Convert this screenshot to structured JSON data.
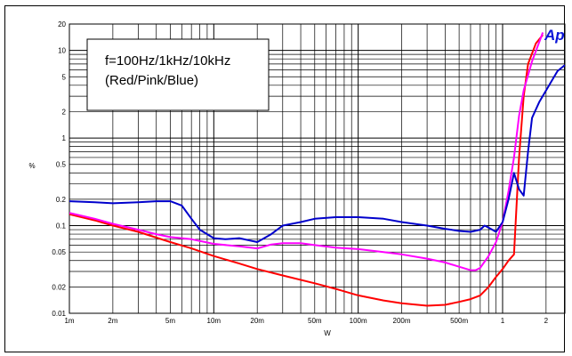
{
  "chart_data": {
    "type": "line",
    "xlabel": "W",
    "ylabel": "%",
    "x_scale": "log",
    "y_scale": "log",
    "xlim": [
      0.001,
      2.7
    ],
    "ylim": [
      0.01,
      20
    ],
    "grid": true,
    "x_ticks": [
      {
        "value": 0.001,
        "label": "1m"
      },
      {
        "value": 0.002,
        "label": "2m"
      },
      {
        "value": 0.005,
        "label": "5m"
      },
      {
        "value": 0.01,
        "label": "10m"
      },
      {
        "value": 0.02,
        "label": "20m"
      },
      {
        "value": 0.05,
        "label": "50m"
      },
      {
        "value": 0.1,
        "label": "100m"
      },
      {
        "value": 0.2,
        "label": "200m"
      },
      {
        "value": 0.5,
        "label": "500m"
      },
      {
        "value": 1,
        "label": "1"
      },
      {
        "value": 2,
        "label": "2"
      }
    ],
    "y_ticks": [
      {
        "value": 0.01,
        "label": "0.01"
      },
      {
        "value": 0.02,
        "label": "0.02"
      },
      {
        "value": 0.05,
        "label": "0.05"
      },
      {
        "value": 0.1,
        "label": "0.1"
      },
      {
        "value": 0.2,
        "label": "0.2"
      },
      {
        "value": 0.5,
        "label": "0.5"
      },
      {
        "value": 1,
        "label": "1"
      },
      {
        "value": 2,
        "label": "2"
      },
      {
        "value": 5,
        "label": "5"
      },
      {
        "value": 10,
        "label": "10"
      },
      {
        "value": 20,
        "label": "20"
      }
    ],
    "annotation": {
      "lines": [
        "f=100Hz/1kHz/10kHz",
        "(Red/Pink/Blue)"
      ]
    },
    "logo": "Ap",
    "series": [
      {
        "color": "#ff0000",
        "points": [
          [
            0.001,
            0.135
          ],
          [
            0.0015,
            0.115
          ],
          [
            0.002,
            0.1
          ],
          [
            0.003,
            0.085
          ],
          [
            0.005,
            0.065
          ],
          [
            0.007,
            0.055
          ],
          [
            0.01,
            0.045
          ],
          [
            0.015,
            0.037
          ],
          [
            0.02,
            0.032
          ],
          [
            0.03,
            0.027
          ],
          [
            0.05,
            0.022
          ],
          [
            0.07,
            0.019
          ],
          [
            0.1,
            0.016
          ],
          [
            0.15,
            0.014
          ],
          [
            0.2,
            0.013
          ],
          [
            0.3,
            0.0122
          ],
          [
            0.4,
            0.0125
          ],
          [
            0.5,
            0.0135
          ],
          [
            0.6,
            0.0145
          ],
          [
            0.7,
            0.016
          ],
          [
            0.8,
            0.02
          ],
          [
            0.9,
            0.026
          ],
          [
            1.0,
            0.032
          ],
          [
            1.1,
            0.04
          ],
          [
            1.2,
            0.047
          ],
          [
            1.3,
            0.6
          ],
          [
            1.4,
            3.0
          ],
          [
            1.5,
            7.0
          ],
          [
            1.7,
            12.0
          ],
          [
            1.9,
            15.0
          ]
        ]
      },
      {
        "color": "#ff00ff",
        "points": [
          [
            0.001,
            0.14
          ],
          [
            0.0015,
            0.12
          ],
          [
            0.002,
            0.105
          ],
          [
            0.003,
            0.09
          ],
          [
            0.004,
            0.08
          ],
          [
            0.005,
            0.074
          ],
          [
            0.007,
            0.07
          ],
          [
            0.01,
            0.062
          ],
          [
            0.015,
            0.058
          ],
          [
            0.02,
            0.055
          ],
          [
            0.025,
            0.061
          ],
          [
            0.03,
            0.063
          ],
          [
            0.04,
            0.063
          ],
          [
            0.05,
            0.06
          ],
          [
            0.07,
            0.056
          ],
          [
            0.1,
            0.054
          ],
          [
            0.15,
            0.05
          ],
          [
            0.2,
            0.047
          ],
          [
            0.3,
            0.042
          ],
          [
            0.4,
            0.038
          ],
          [
            0.5,
            0.034
          ],
          [
            0.6,
            0.031
          ],
          [
            0.65,
            0.031
          ],
          [
            0.7,
            0.033
          ],
          [
            0.8,
            0.045
          ],
          [
            0.9,
            0.065
          ],
          [
            1.0,
            0.11
          ],
          [
            1.1,
            0.25
          ],
          [
            1.2,
            0.6
          ],
          [
            1.3,
            1.8
          ],
          [
            1.4,
            3.5
          ],
          [
            1.6,
            7.5
          ],
          [
            1.9,
            16.0
          ]
        ]
      },
      {
        "color": "#0000cc",
        "points": [
          [
            0.001,
            0.19
          ],
          [
            0.0015,
            0.185
          ],
          [
            0.002,
            0.18
          ],
          [
            0.003,
            0.185
          ],
          [
            0.004,
            0.19
          ],
          [
            0.005,
            0.19
          ],
          [
            0.006,
            0.17
          ],
          [
            0.007,
            0.12
          ],
          [
            0.008,
            0.09
          ],
          [
            0.01,
            0.072
          ],
          [
            0.012,
            0.07
          ],
          [
            0.015,
            0.072
          ],
          [
            0.02,
            0.065
          ],
          [
            0.025,
            0.08
          ],
          [
            0.03,
            0.1
          ],
          [
            0.04,
            0.11
          ],
          [
            0.05,
            0.12
          ],
          [
            0.07,
            0.125
          ],
          [
            0.1,
            0.125
          ],
          [
            0.15,
            0.12
          ],
          [
            0.2,
            0.11
          ],
          [
            0.3,
            0.1
          ],
          [
            0.4,
            0.092
          ],
          [
            0.5,
            0.087
          ],
          [
            0.6,
            0.085
          ],
          [
            0.7,
            0.09
          ],
          [
            0.75,
            0.1
          ],
          [
            0.8,
            0.095
          ],
          [
            0.9,
            0.085
          ],
          [
            1.0,
            0.11
          ],
          [
            1.1,
            0.2
          ],
          [
            1.2,
            0.4
          ],
          [
            1.3,
            0.26
          ],
          [
            1.4,
            0.22
          ],
          [
            1.5,
            0.7
          ],
          [
            1.6,
            1.7
          ],
          [
            1.8,
            2.6
          ],
          [
            2.1,
            4.0
          ],
          [
            2.4,
            5.8
          ],
          [
            2.7,
            6.8
          ]
        ]
      }
    ]
  }
}
